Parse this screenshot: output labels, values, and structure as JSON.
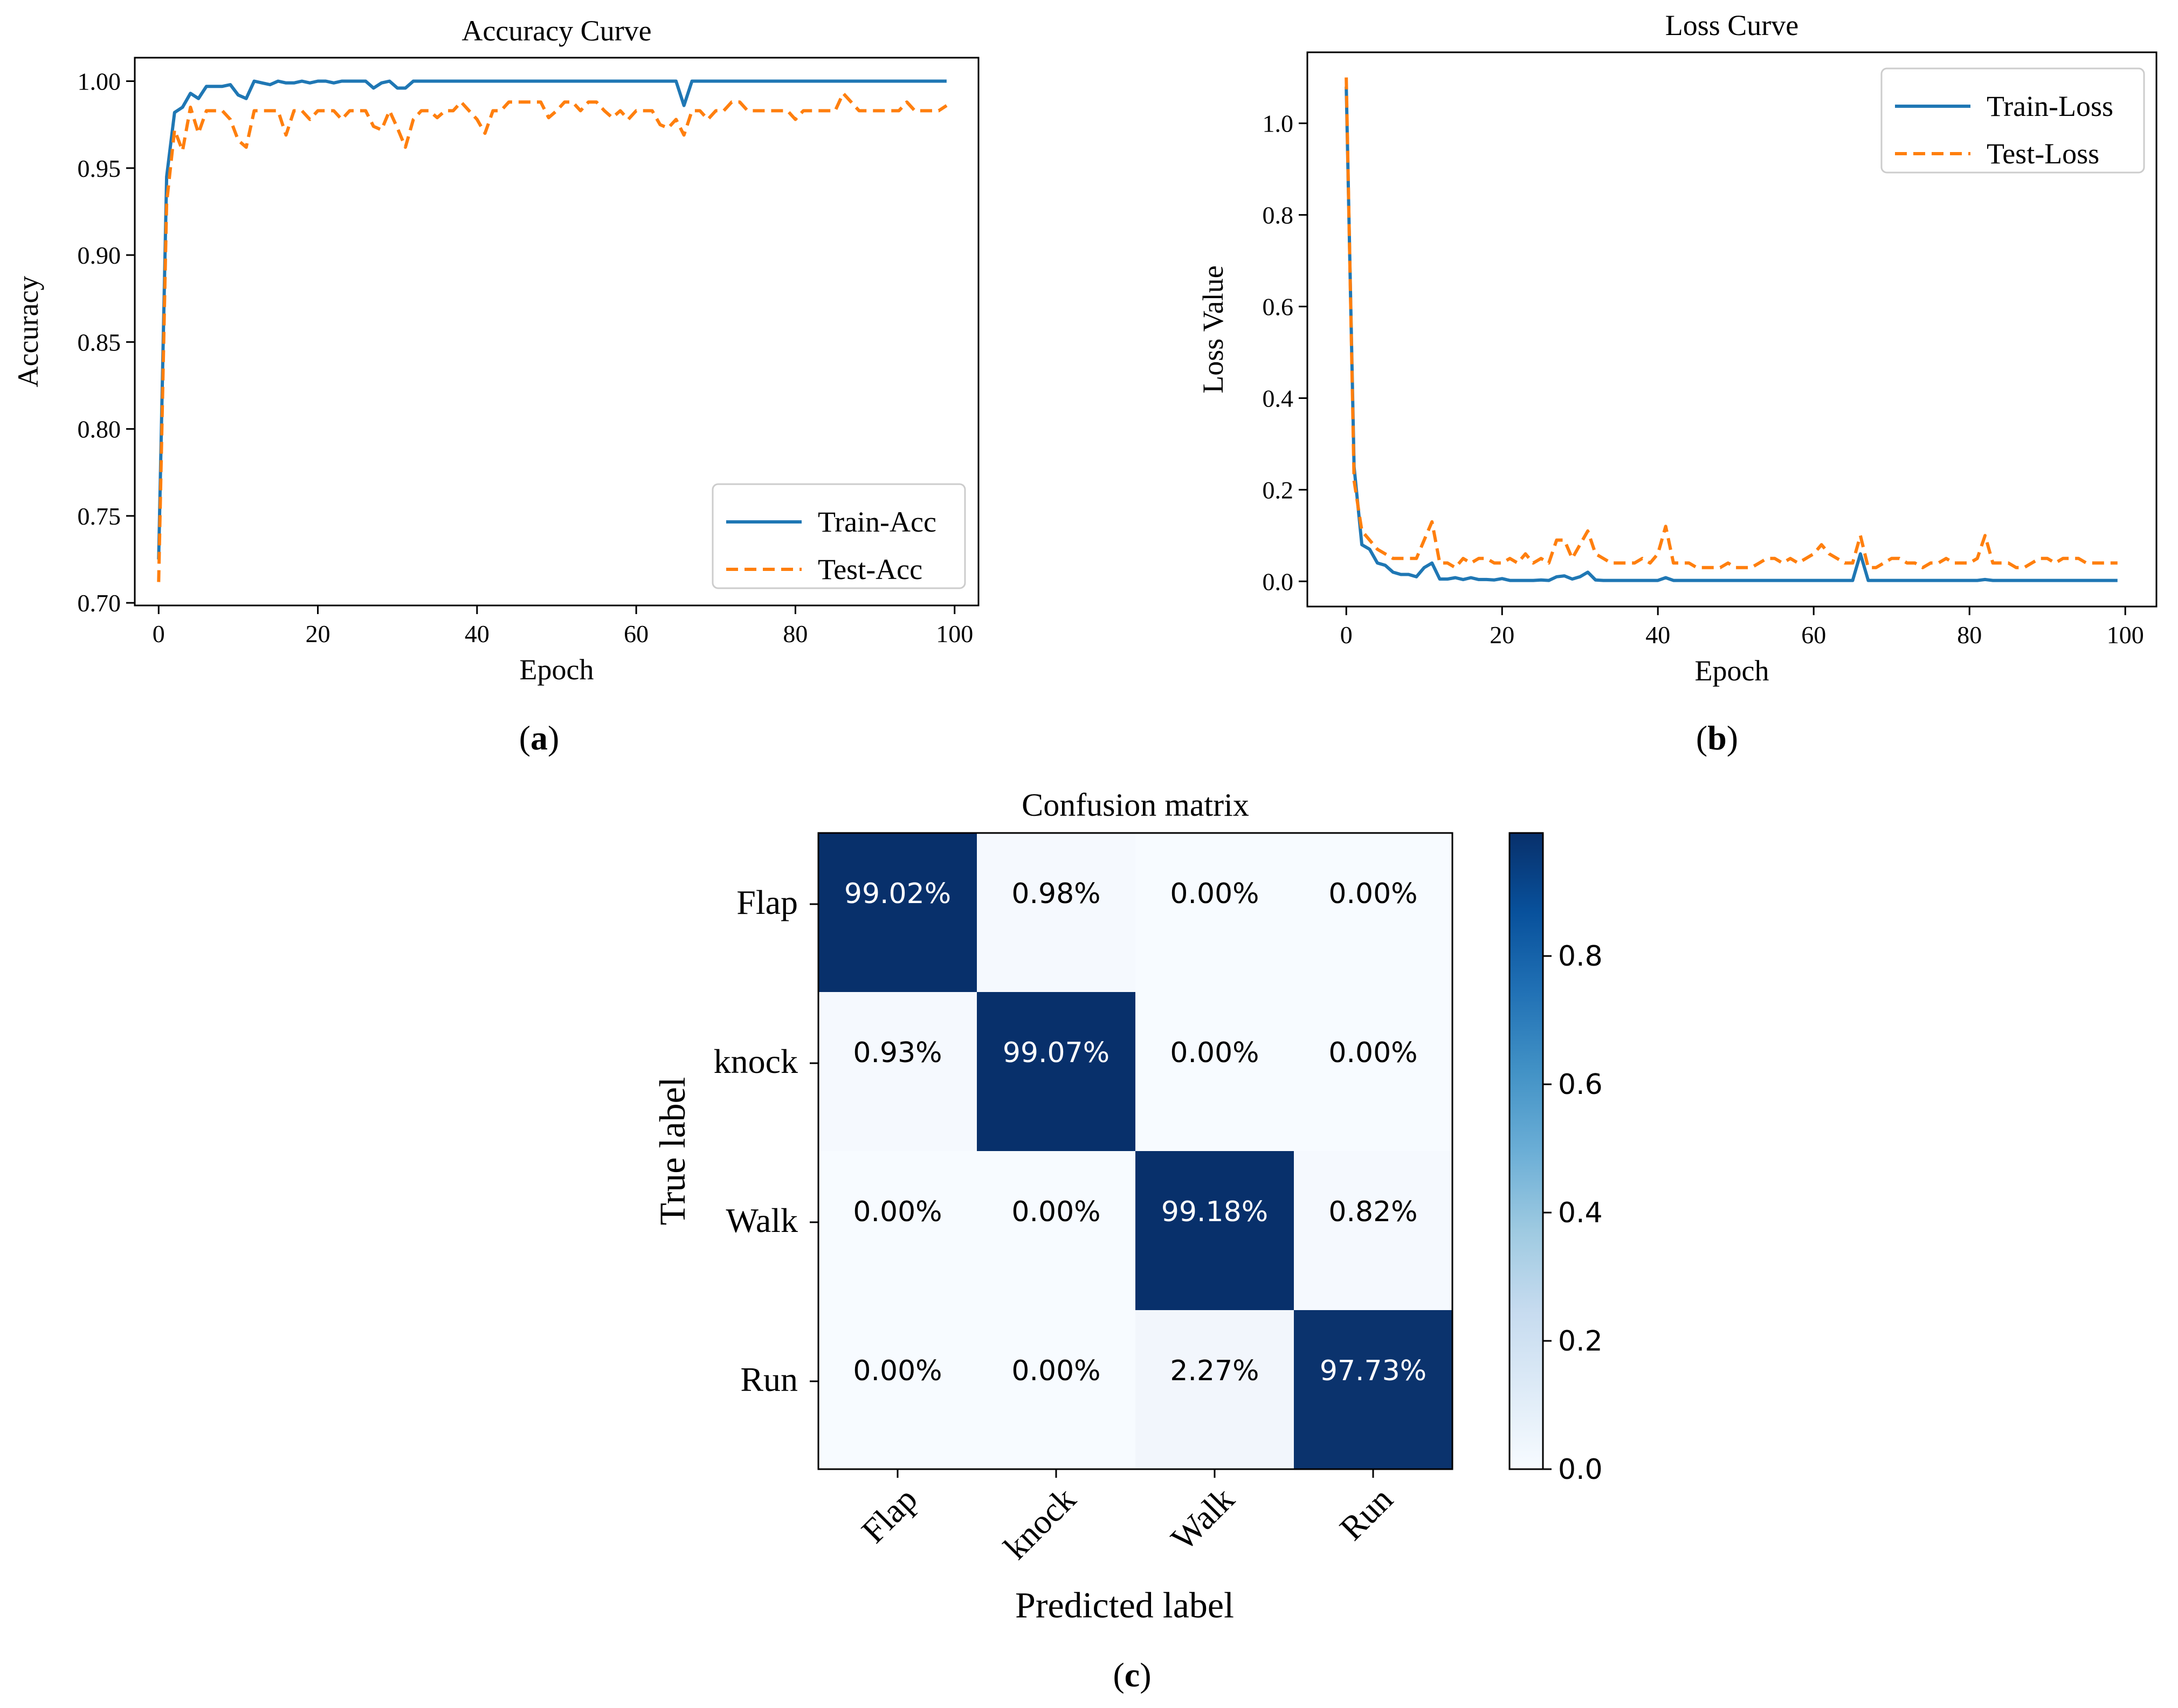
{
  "panels": {
    "a": "a",
    "b": "b",
    "c": "c"
  },
  "colors": {
    "train": "#1f77b4",
    "test": "#ff7f0e",
    "cm_low": "#f7fbff",
    "cm_high": "#08306b"
  },
  "chart_data": [
    {
      "id": "accuracy",
      "type": "line",
      "title": "Accuracy Curve",
      "xlabel": "Epoch",
      "ylabel": "Accuracy",
      "xlim": [
        -3,
        103
      ],
      "ylim": [
        0.6985,
        1.0135
      ],
      "xticks": [
        0,
        20,
        40,
        60,
        80,
        100
      ],
      "yticks": [
        0.7,
        0.75,
        0.8,
        0.85,
        0.9,
        0.95,
        1.0
      ],
      "ytick_labels": [
        "0.70",
        "0.75",
        "0.80",
        "0.85",
        "0.90",
        "0.95",
        "1.00"
      ],
      "legend_position": "lower-right",
      "series": [
        {
          "name": "Train-Acc",
          "style": "solid",
          "values": [
            0.725,
            0.945,
            0.982,
            0.985,
            0.993,
            0.99,
            0.997,
            0.997,
            0.997,
            0.998,
            0.992,
            0.99,
            1.0,
            0.999,
            0.998,
            1.0,
            0.999,
            0.999,
            1.0,
            0.999,
            1.0,
            1.0,
            0.999,
            1.0,
            1.0,
            1.0,
            1.0,
            0.996,
            0.999,
            1.0,
            0.996,
            0.996,
            1.0,
            1.0,
            1.0,
            1.0,
            1.0,
            1.0,
            1.0,
            1.0,
            1.0,
            1.0,
            1.0,
            1.0,
            1.0,
            1.0,
            1.0,
            1.0,
            1.0,
            1.0,
            1.0,
            1.0,
            1.0,
            1.0,
            1.0,
            1.0,
            1.0,
            1.0,
            1.0,
            1.0,
            1.0,
            1.0,
            1.0,
            1.0,
            1.0,
            1.0,
            0.986,
            1.0,
            1.0,
            1.0,
            1.0,
            1.0,
            1.0,
            1.0,
            1.0,
            1.0,
            1.0,
            1.0,
            1.0,
            1.0,
            1.0,
            1.0,
            1.0,
            1.0,
            1.0,
            1.0,
            1.0,
            1.0,
            1.0,
            1.0,
            1.0,
            1.0,
            1.0,
            1.0,
            1.0,
            1.0,
            1.0,
            1.0,
            1.0,
            1.0
          ]
        },
        {
          "name": "Test-Acc",
          "style": "dashed",
          "values": [
            0.712,
            0.93,
            0.972,
            0.96,
            0.985,
            0.97,
            0.983,
            0.983,
            0.983,
            0.978,
            0.966,
            0.962,
            0.983,
            0.983,
            0.983,
            0.983,
            0.969,
            0.983,
            0.983,
            0.978,
            0.983,
            0.983,
            0.983,
            0.978,
            0.983,
            0.983,
            0.983,
            0.974,
            0.972,
            0.983,
            0.973,
            0.962,
            0.978,
            0.983,
            0.983,
            0.979,
            0.983,
            0.983,
            0.988,
            0.983,
            0.978,
            0.97,
            0.983,
            0.983,
            0.988,
            0.988,
            0.988,
            0.988,
            0.988,
            0.979,
            0.983,
            0.988,
            0.988,
            0.983,
            0.988,
            0.988,
            0.983,
            0.979,
            0.983,
            0.978,
            0.983,
            0.983,
            0.983,
            0.975,
            0.973,
            0.978,
            0.969,
            0.983,
            0.983,
            0.978,
            0.983,
            0.983,
            0.988,
            0.988,
            0.983,
            0.983,
            0.983,
            0.983,
            0.983,
            0.983,
            0.978,
            0.983,
            0.983,
            0.983,
            0.983,
            0.983,
            0.993,
            0.988,
            0.983,
            0.983,
            0.983,
            0.983,
            0.983,
            0.983,
            0.988,
            0.983,
            0.983,
            0.983,
            0.983,
            0.986
          ]
        }
      ]
    },
    {
      "id": "loss",
      "type": "line",
      "title": "Loss Curve",
      "xlabel": "Epoch",
      "ylabel": "Loss Value",
      "xlim": [
        -5,
        104
      ],
      "ylim": [
        -0.055,
        1.155
      ],
      "xticks": [
        0,
        20,
        40,
        60,
        80,
        100
      ],
      "yticks": [
        0.0,
        0.2,
        0.4,
        0.6,
        0.8,
        1.0
      ],
      "ytick_labels": [
        "0.0",
        "0.2",
        "0.4",
        "0.6",
        "0.8",
        "1.0"
      ],
      "legend_position": "upper-right",
      "series": [
        {
          "name": "Train-Loss",
          "style": "solid",
          "values": [
            1.08,
            0.25,
            0.08,
            0.07,
            0.04,
            0.035,
            0.02,
            0.015,
            0.015,
            0.01,
            0.03,
            0.04,
            0.005,
            0.005,
            0.008,
            0.004,
            0.008,
            0.004,
            0.004,
            0.003,
            0.006,
            0.002,
            0.002,
            0.002,
            0.002,
            0.003,
            0.002,
            0.01,
            0.012,
            0.005,
            0.01,
            0.02,
            0.003,
            0.002,
            0.002,
            0.002,
            0.002,
            0.002,
            0.002,
            0.002,
            0.002,
            0.008,
            0.002,
            0.002,
            0.002,
            0.002,
            0.002,
            0.002,
            0.002,
            0.002,
            0.002,
            0.002,
            0.002,
            0.002,
            0.002,
            0.002,
            0.002,
            0.002,
            0.002,
            0.002,
            0.002,
            0.002,
            0.002,
            0.002,
            0.002,
            0.002,
            0.06,
            0.002,
            0.002,
            0.002,
            0.002,
            0.002,
            0.002,
            0.002,
            0.002,
            0.002,
            0.002,
            0.002,
            0.002,
            0.002,
            0.002,
            0.002,
            0.004,
            0.002,
            0.002,
            0.002,
            0.002,
            0.002,
            0.002,
            0.002,
            0.002,
            0.002,
            0.002,
            0.002,
            0.002,
            0.002,
            0.002,
            0.002,
            0.002,
            0.002
          ]
        },
        {
          "name": "Test-Loss",
          "style": "dashed",
          "values": [
            1.1,
            0.22,
            0.11,
            0.09,
            0.07,
            0.06,
            0.05,
            0.05,
            0.05,
            0.05,
            0.09,
            0.13,
            0.04,
            0.04,
            0.03,
            0.05,
            0.04,
            0.05,
            0.05,
            0.04,
            0.04,
            0.05,
            0.04,
            0.06,
            0.04,
            0.05,
            0.04,
            0.09,
            0.09,
            0.05,
            0.08,
            0.11,
            0.06,
            0.05,
            0.04,
            0.04,
            0.04,
            0.04,
            0.05,
            0.04,
            0.06,
            0.12,
            0.04,
            0.04,
            0.04,
            0.03,
            0.03,
            0.03,
            0.03,
            0.04,
            0.03,
            0.03,
            0.03,
            0.04,
            0.05,
            0.05,
            0.04,
            0.05,
            0.04,
            0.05,
            0.06,
            0.08,
            0.06,
            0.05,
            0.04,
            0.04,
            0.1,
            0.03,
            0.03,
            0.04,
            0.05,
            0.05,
            0.04,
            0.04,
            0.03,
            0.04,
            0.04,
            0.05,
            0.04,
            0.04,
            0.04,
            0.05,
            0.1,
            0.04,
            0.04,
            0.04,
            0.03,
            0.03,
            0.04,
            0.05,
            0.05,
            0.04,
            0.05,
            0.05,
            0.05,
            0.04,
            0.04,
            0.04,
            0.04,
            0.04
          ]
        }
      ]
    },
    {
      "id": "confusion",
      "type": "heatmap",
      "title": "Confusion matrix",
      "xlabel": "Predicted label",
      "ylabel": "True label",
      "row_labels": [
        "Flap",
        "knock",
        "Walk",
        "Run"
      ],
      "col_labels": [
        "Flap",
        "knock",
        "Walk",
        "Run"
      ],
      "values": [
        [
          0.9902,
          0.0098,
          0.0,
          0.0
        ],
        [
          0.0093,
          0.9907,
          0.0,
          0.0
        ],
        [
          0.0,
          0.0,
          0.9918,
          0.0082
        ],
        [
          0.0,
          0.0,
          0.0227,
          0.9773
        ]
      ],
      "cell_labels": [
        [
          "99.02%",
          "0.98%",
          "0.00%",
          "0.00%"
        ],
        [
          "0.93%",
          "99.07%",
          "0.00%",
          "0.00%"
        ],
        [
          "0.00%",
          "0.00%",
          "99.18%",
          "0.82%"
        ],
        [
          "0.00%",
          "0.00%",
          "2.27%",
          "97.73%"
        ]
      ],
      "colorbar": {
        "min": 0.0,
        "max": 0.9918,
        "ticks": [
          0.0,
          0.2,
          0.4,
          0.6,
          0.8
        ],
        "tick_labels": [
          "0.0",
          "0.2",
          "0.4",
          "0.6",
          "0.8"
        ]
      }
    }
  ]
}
